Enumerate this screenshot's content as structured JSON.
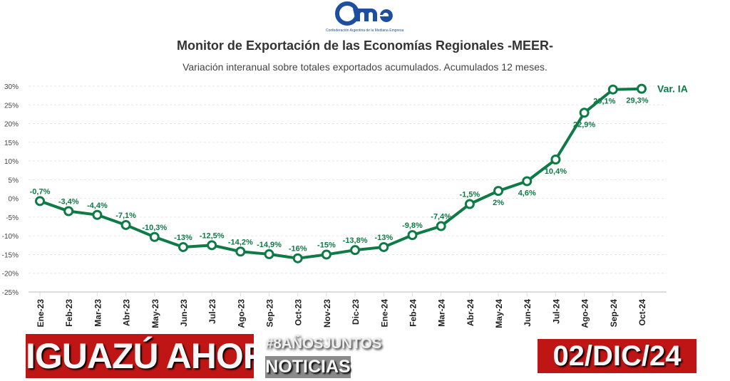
{
  "header": {
    "logo_text": "came",
    "logo_subtext": "Confederación Argentina de la Mediana Empresa",
    "title": "Monitor de Exportación de las Economías Regionales -MEER-",
    "subtitle": "Variación interanual sobre totales exportados acumulados. Acumulados 12 meses."
  },
  "overlay": {
    "brand": "IGUAZÚ AHORA",
    "hashtag": "#8AÑOSJUNTOS",
    "section": "NOTICIAS",
    "date": "02/DIC/24"
  },
  "chart_data": {
    "type": "line",
    "categories": [
      "Ene-23",
      "Feb-23",
      "Mar-23",
      "Abr-23",
      "May-23",
      "Jun-23",
      "Jul-23",
      "Ago-23",
      "Sep-23",
      "Oct-23",
      "Nov-23",
      "Dic-23",
      "Ene-24",
      "Feb-24",
      "Mar-24",
      "Abr-24",
      "May-24",
      "Jun-24",
      "Jul-24",
      "Ago-24",
      "Sep-24",
      "Oct-24"
    ],
    "series": [
      {
        "name": "Var. IA",
        "values": [
          -0.7,
          -3.4,
          -4.4,
          -7.1,
          -10.3,
          -13,
          -12.5,
          -14.2,
          -14.9,
          -16,
          -15,
          -13.8,
          -13,
          -9.8,
          -7.4,
          -1.5,
          2,
          4.6,
          10.4,
          22.9,
          29.1,
          29.3
        ],
        "labels": [
          "-0,7%",
          "-3,4%",
          "-4,4%",
          "-7,1%",
          "-10,3%",
          "-13%",
          "-12,5%",
          "-14,2%",
          "-14,9%",
          "-16%",
          "-15%",
          "-13,8%",
          "-13%",
          "-9,8%",
          "-7,4%",
          "-1,5%",
          "2%",
          "4,6%",
          "10,4%",
          "22,9%",
          "29,1%",
          "29,3%"
        ],
        "color": "#0e7a45"
      }
    ],
    "yticks": [
      "30%",
      "25%",
      "20%",
      "15%",
      "10%",
      "5%",
      "0%",
      "-5%",
      "-10%",
      "-15%",
      "-20%",
      "-25%"
    ],
    "ylim": [
      -25,
      30
    ],
    "grid": true,
    "legend": "end-of-line"
  }
}
